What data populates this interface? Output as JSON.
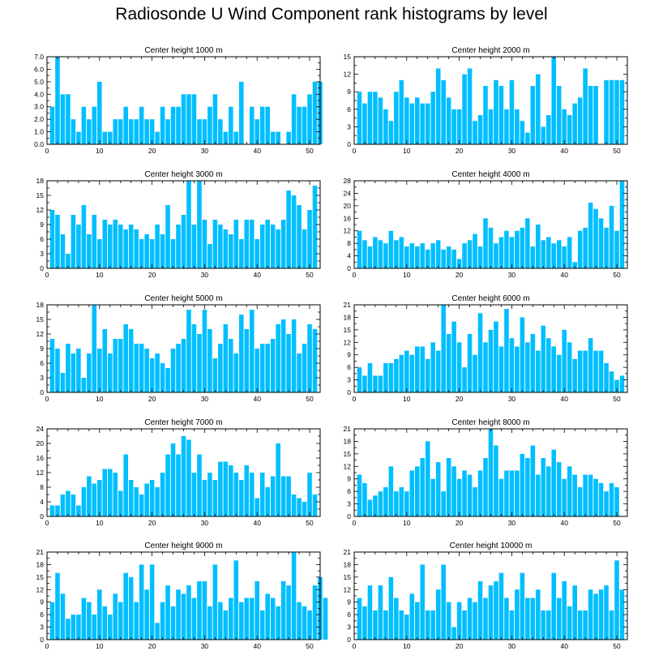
{
  "title": "Radiosonde U Wind Component rank histograms by level",
  "colors": {
    "bar": "#00bfff",
    "bar_edge": "#ffffff",
    "axis": "#000000"
  },
  "chart_data": [
    {
      "type": "bar",
      "title": "Center height 1000 m",
      "xlim": [
        0,
        52
      ],
      "xticks": [
        0,
        10,
        20,
        30,
        40,
        50
      ],
      "ylim": [
        0,
        7
      ],
      "yticks": [
        0,
        1,
        2,
        3,
        4,
        5,
        6,
        7
      ],
      "ytick_labels": [
        "0.0",
        "1.0",
        "2.0",
        "3.0",
        "4.0",
        "5.0",
        "6.0",
        "7.0"
      ],
      "values": [
        3,
        7,
        4,
        4,
        2,
        1,
        3,
        2,
        3,
        5,
        1,
        1,
        2,
        2,
        3,
        2,
        2,
        3,
        2,
        2,
        1,
        3,
        2,
        3,
        3,
        4,
        4,
        4,
        2,
        2,
        3,
        4,
        2,
        1,
        3,
        1,
        5,
        0,
        3,
        2,
        3,
        3,
        1,
        1,
        0,
        1,
        4,
        3,
        3,
        4,
        5,
        5
      ]
    },
    {
      "type": "bar",
      "title": "Center height 2000 m",
      "xlim": [
        0,
        52
      ],
      "xticks": [
        0,
        10,
        20,
        30,
        40,
        50
      ],
      "ylim": [
        0,
        15
      ],
      "yticks": [
        0,
        3,
        6,
        9,
        12,
        15
      ],
      "ytick_labels": [
        "0",
        "3",
        "6",
        "9",
        "12",
        "15"
      ],
      "values": [
        9,
        7,
        9,
        9,
        8,
        6,
        4,
        9,
        11,
        8,
        7,
        8,
        7,
        7,
        9,
        13,
        11,
        8,
        6,
        6,
        12,
        13,
        4,
        5,
        10,
        6,
        11,
        10,
        6,
        11,
        6,
        4,
        2,
        10,
        12,
        3,
        5,
        15,
        10,
        6,
        5,
        7,
        8,
        13,
        10,
        10,
        0,
        11,
        11,
        11,
        11
      ]
    },
    {
      "type": "bar",
      "title": "Center height 3000 m",
      "xlim": [
        0,
        52
      ],
      "xticks": [
        0,
        10,
        20,
        30,
        40,
        50
      ],
      "ylim": [
        0,
        18
      ],
      "yticks": [
        0,
        3,
        6,
        9,
        12,
        15,
        18
      ],
      "ytick_labels": [
        "0",
        "3",
        "6",
        "9",
        "12",
        "15",
        "18"
      ],
      "values": [
        12,
        11,
        7,
        3,
        11,
        9,
        13,
        7,
        11,
        6,
        10,
        9,
        10,
        9,
        8,
        9,
        8,
        6,
        7,
        6,
        9,
        7,
        13,
        6,
        9,
        11,
        18,
        9,
        18,
        10,
        5,
        10,
        9,
        8,
        7,
        10,
        6,
        10,
        10,
        6,
        9,
        10,
        9,
        8,
        10,
        16,
        15,
        13,
        8,
        12,
        17
      ]
    },
    {
      "type": "bar",
      "title": "Center height 4000 m",
      "xlim": [
        0,
        52
      ],
      "xticks": [
        0,
        10,
        20,
        30,
        40,
        50
      ],
      "ylim": [
        0,
        28
      ],
      "yticks": [
        0,
        4,
        8,
        12,
        16,
        20,
        24,
        28
      ],
      "ytick_labels": [
        "0",
        "4",
        "8",
        "12",
        "16",
        "20",
        "24",
        "28"
      ],
      "values": [
        12,
        9,
        7,
        10,
        9,
        8,
        12,
        9,
        10,
        7,
        8,
        7,
        8,
        6,
        8,
        9,
        6,
        7,
        6,
        3,
        8,
        9,
        11,
        7,
        16,
        13,
        8,
        10,
        12,
        10,
        12,
        13,
        16,
        7,
        14,
        9,
        10,
        8,
        9,
        7,
        10,
        2,
        12,
        13,
        21,
        19,
        16,
        13,
        20,
        12,
        28
      ]
    },
    {
      "type": "bar",
      "title": "Center height 5000 m",
      "xlim": [
        0,
        52
      ],
      "xticks": [
        0,
        10,
        20,
        30,
        40,
        50
      ],
      "ylim": [
        0,
        18
      ],
      "yticks": [
        0,
        3,
        6,
        9,
        12,
        15,
        18
      ],
      "ytick_labels": [
        "0",
        "3",
        "6",
        "9",
        "12",
        "15",
        "18"
      ],
      "values": [
        11,
        9,
        4,
        10,
        8,
        9,
        3,
        8,
        18,
        9,
        13,
        8,
        11,
        11,
        14,
        13,
        10,
        10,
        9,
        7,
        8,
        6,
        5,
        9,
        10,
        11,
        17,
        14,
        12,
        17,
        13,
        7,
        10,
        14,
        11,
        8,
        16,
        13,
        17,
        9,
        10,
        10,
        11,
        14,
        15,
        12,
        15,
        8,
        10,
        14,
        13
      ]
    },
    {
      "type": "bar",
      "title": "Center height 6000 m",
      "xlim": [
        0,
        52
      ],
      "xticks": [
        0,
        10,
        20,
        30,
        40,
        50
      ],
      "ylim": [
        0,
        21
      ],
      "yticks": [
        0,
        3,
        6,
        9,
        12,
        15,
        18,
        21
      ],
      "ytick_labels": [
        "0",
        "3",
        "6",
        "9",
        "12",
        "15",
        "18",
        "21"
      ],
      "values": [
        6,
        4,
        7,
        4,
        4,
        7,
        7,
        8,
        9,
        10,
        9,
        11,
        11,
        8,
        12,
        10,
        21,
        14,
        17,
        12,
        6,
        14,
        9,
        19,
        12,
        15,
        17,
        11,
        20,
        13,
        11,
        18,
        12,
        14,
        10,
        16,
        13,
        11,
        9,
        15,
        12,
        8,
        10,
        10,
        13,
        10,
        10,
        7,
        5,
        3,
        4
      ]
    },
    {
      "type": "bar",
      "title": "Center height 7000 m",
      "xlim": [
        0,
        52
      ],
      "xticks": [
        0,
        10,
        20,
        30,
        40,
        50
      ],
      "ylim": [
        0,
        24
      ],
      "yticks": [
        0,
        4,
        8,
        12,
        16,
        20,
        24
      ],
      "ytick_labels": [
        "0",
        "4",
        "8",
        "12",
        "16",
        "20",
        "24"
      ],
      "values": [
        3,
        3,
        6,
        7,
        6,
        3,
        8,
        11,
        9,
        10,
        13,
        13,
        12,
        7,
        17,
        10,
        8,
        6,
        9,
        10,
        8,
        12,
        17,
        20,
        17,
        22,
        21,
        12,
        17,
        10,
        12,
        10,
        15,
        15,
        14,
        12,
        10,
        14,
        12,
        5,
        12,
        8,
        11,
        20,
        11,
        11,
        6,
        5,
        4,
        12,
        6
      ]
    },
    {
      "type": "bar",
      "title": "Center height 8000 m",
      "xlim": [
        0,
        52
      ],
      "xticks": [
        0,
        10,
        20,
        30,
        40,
        50
      ],
      "ylim": [
        0,
        21
      ],
      "yticks": [
        0,
        3,
        6,
        9,
        12,
        15,
        18,
        21
      ],
      "ytick_labels": [
        "0",
        "3",
        "6",
        "9",
        "12",
        "15",
        "18",
        "21"
      ],
      "values": [
        10,
        8,
        4,
        5,
        6,
        7,
        12,
        6,
        7,
        6,
        11,
        12,
        14,
        18,
        9,
        13,
        6,
        14,
        12,
        9,
        11,
        10,
        7,
        11,
        14,
        21,
        17,
        9,
        11,
        11,
        11,
        15,
        14,
        17,
        10,
        14,
        12,
        16,
        13,
        9,
        12,
        10,
        7,
        10,
        10,
        9,
        8,
        6,
        8,
        7
      ]
    },
    {
      "type": "bar",
      "title": "Center height 9000 m",
      "xlim": [
        0,
        52
      ],
      "xticks": [
        0,
        10,
        20,
        30,
        40,
        50
      ],
      "ylim": [
        0,
        21
      ],
      "yticks": [
        0,
        3,
        6,
        9,
        12,
        15,
        18,
        21
      ],
      "ytick_labels": [
        "0",
        "3",
        "6",
        "9",
        "12",
        "15",
        "18",
        "21"
      ],
      "values": [
        9,
        16,
        11,
        5,
        6,
        6,
        10,
        9,
        6,
        12,
        8,
        6,
        11,
        9,
        16,
        15,
        9,
        18,
        12,
        18,
        4,
        9,
        13,
        8,
        12,
        11,
        13,
        10,
        14,
        14,
        8,
        18,
        9,
        7,
        10,
        19,
        9,
        10,
        10,
        14,
        7,
        11,
        10,
        8,
        14,
        13,
        21,
        9,
        8,
        7,
        13,
        15,
        10
      ]
    },
    {
      "type": "bar",
      "title": "Center height 10000 m",
      "xlim": [
        0,
        52
      ],
      "xticks": [
        0,
        10,
        20,
        30,
        40,
        50
      ],
      "ylim": [
        0,
        21
      ],
      "yticks": [
        0,
        3,
        6,
        9,
        12,
        15,
        18,
        21
      ],
      "ytick_labels": [
        "0",
        "3",
        "6",
        "9",
        "12",
        "15",
        "18",
        "21"
      ],
      "values": [
        10,
        8,
        13,
        7,
        13,
        7,
        15,
        10,
        7,
        6,
        11,
        9,
        18,
        7,
        7,
        12,
        18,
        9,
        3,
        9,
        7,
        10,
        9,
        14,
        10,
        13,
        14,
        16,
        10,
        7,
        12,
        16,
        10,
        10,
        12,
        7,
        7,
        16,
        10,
        14,
        8,
        13,
        7,
        7,
        12,
        11,
        12,
        13,
        7,
        19,
        12
      ]
    }
  ]
}
